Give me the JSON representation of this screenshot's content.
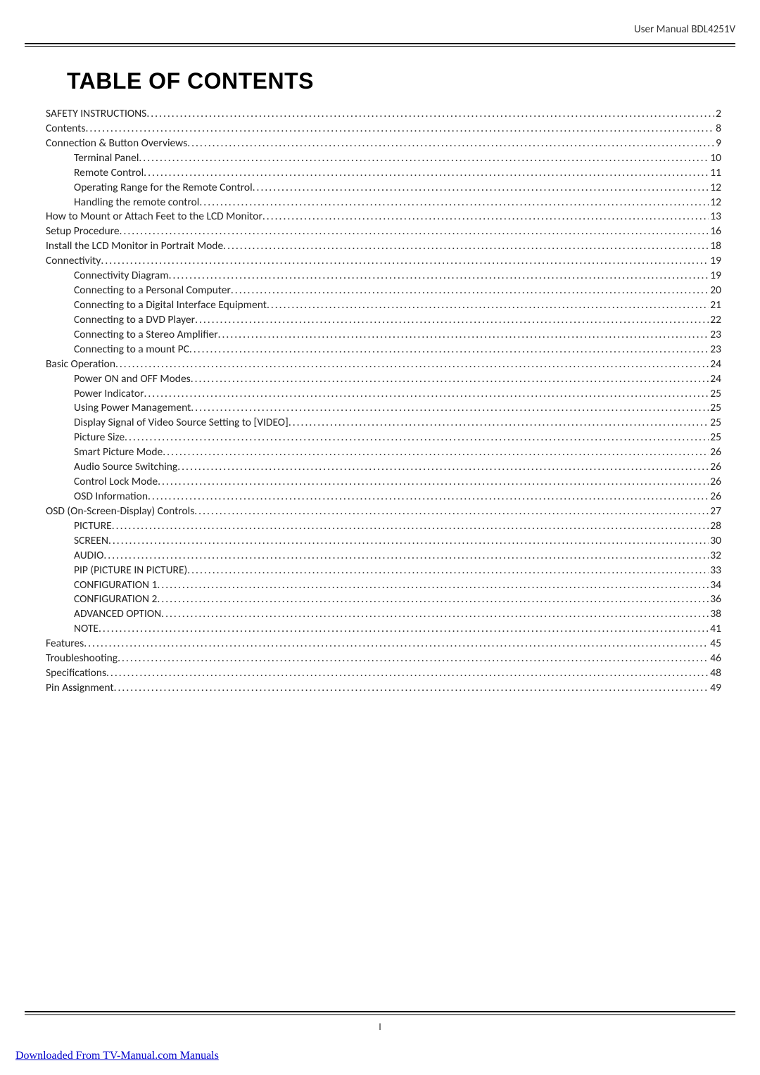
{
  "header": {
    "manual_label": "User Manual BDL4251V"
  },
  "title": "TABLE OF CONTENTS",
  "toc": [
    {
      "level": 1,
      "label": "SAFETY INSTRUCTIONS",
      "page": "2"
    },
    {
      "level": 1,
      "label": "Contents",
      "page": "8"
    },
    {
      "level": 1,
      "label": "Connection & Button Overviews",
      "page": "9"
    },
    {
      "level": 2,
      "label": "Terminal Panel",
      "page": "10"
    },
    {
      "level": 2,
      "label": "Remote Control",
      "page": "11"
    },
    {
      "level": 2,
      "label": "Operating Range for the Remote Control",
      "page": "12"
    },
    {
      "level": 2,
      "label": "Handling the remote control",
      "page": "12"
    },
    {
      "level": 1,
      "label": "How to Mount or Attach Feet to the LCD Monitor",
      "page": "13"
    },
    {
      "level": 1,
      "label": "Setup Procedure",
      "page": "16"
    },
    {
      "level": 1,
      "label": "Install the LCD Monitor in Portrait Mode",
      "page": "18"
    },
    {
      "level": 1,
      "label": "Connectivity",
      "page": "19"
    },
    {
      "level": 2,
      "label": "Connectivity Diagram",
      "page": "19"
    },
    {
      "level": 2,
      "label": "Connecting to a Personal Computer",
      "page": "20"
    },
    {
      "level": 2,
      "label": "Connecting to a Digital Interface Equipment",
      "page": "21"
    },
    {
      "level": 2,
      "label": "Connecting to a DVD Player",
      "page": "22"
    },
    {
      "level": 2,
      "label": "Connecting to a Stereo Amplifier",
      "page": "23"
    },
    {
      "level": 2,
      "label": "Connecting to a mount PC",
      "page": "23"
    },
    {
      "level": 1,
      "label": "Basic Operation",
      "page": "24"
    },
    {
      "level": 2,
      "label": "Power ON and OFF Modes",
      "page": "24"
    },
    {
      "level": 2,
      "label": "Power Indicator",
      "page": "25"
    },
    {
      "level": 2,
      "label": "Using Power Management",
      "page": "25"
    },
    {
      "level": 2,
      "label": "Display Signal of Video Source Setting to [VIDEO]",
      "page": "25"
    },
    {
      "level": 2,
      "label": "Picture Size",
      "page": "25"
    },
    {
      "level": 2,
      "label": "Smart Picture Mode",
      "page": "26"
    },
    {
      "level": 2,
      "label": "Audio Source Switching",
      "page": "26"
    },
    {
      "level": 2,
      "label": "Control Lock Mode",
      "page": "26"
    },
    {
      "level": 2,
      "label": "OSD Information",
      "page": "26"
    },
    {
      "level": 1,
      "label": "OSD (On-Screen-Display) Controls",
      "page": "27"
    },
    {
      "level": 2,
      "label": "PICTURE",
      "page": "28"
    },
    {
      "level": 2,
      "label": "SCREEN",
      "page": "30"
    },
    {
      "level": 2,
      "label": "AUDIO",
      "page": "32"
    },
    {
      "level": 2,
      "label": "PIP (PICTURE IN PICTURE)",
      "page": "33"
    },
    {
      "level": 2,
      "label": "CONFIGURATION 1",
      "page": "34"
    },
    {
      "level": 2,
      "label": "CONFIGURATION 2",
      "page": "36"
    },
    {
      "level": 2,
      "label": "ADVANCED OPTION",
      "page": "38"
    },
    {
      "level": 2,
      "label": "NOTE",
      "page": "41"
    },
    {
      "level": 1,
      "label": "Features",
      "page": "45"
    },
    {
      "level": 1,
      "label": "Troubleshooting",
      "page": "46"
    },
    {
      "level": 1,
      "label": "Specifications",
      "page": "48"
    },
    {
      "level": 1,
      "label": "Pin Assignment",
      "page": "49"
    }
  ],
  "footer": {
    "page_number": "I",
    "download_text": "Downloaded From TV-Manual.com Manuals"
  }
}
